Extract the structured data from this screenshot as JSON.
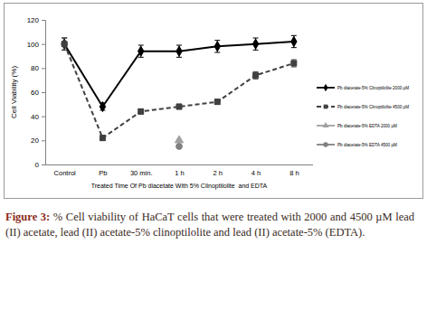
{
  "chart_data": {
    "type": "line",
    "x_label": "Treated Time Of Pb diacetate With 5% Clinoptilolite  and EDTA",
    "y_label": "Cell Viability (%)",
    "caption_label": "Figure 3:",
    "caption": "% Cell viability of HaCaT cells that were treated with 2000 and 4500 µM lead (II) acetate, lead (II) acetate-5% clinoptilolite and lead (II) acetate-5% (EDTA).",
    "categories": [
      "Control",
      "Pb",
      "30 min.",
      "1 h",
      "2 h",
      "4 h",
      "8 h"
    ],
    "ylim": [
      0,
      120
    ],
    "yticks": [
      0,
      20,
      40,
      60,
      80,
      100,
      120
    ],
    "grid": false,
    "legend": "right",
    "series": [
      {
        "name": "Pb diacetate-5% Clinoptilolite 2000 µM",
        "color": "#000000",
        "marker": "diamond",
        "line_style": "solid",
        "values": [
          100,
          48,
          94,
          94,
          98,
          100,
          102
        ],
        "errors": [
          5,
          3,
          5,
          5,
          5,
          5,
          5
        ]
      },
      {
        "name": "Pb diacetate-5% Clinoptilolite 4500 µM",
        "color": "#404040",
        "marker": "square",
        "line_style": "dashed",
        "values": [
          100,
          22,
          44,
          48,
          52,
          74,
          84
        ],
        "errors": [
          5,
          2,
          2,
          2,
          2,
          3,
          3
        ]
      },
      {
        "name": "Pb diacetate-5% EDTA 2000 µM",
        "color": "#a0a0a0",
        "marker": "triangle",
        "line_style": "solid",
        "values": [
          null,
          null,
          null,
          20,
          null,
          null,
          null
        ],
        "errors": [
          null,
          null,
          null,
          1,
          null,
          null,
          null
        ]
      },
      {
        "name": "Pb diacetate-5% EDTA 4500 µM",
        "color": "#808080",
        "marker": "circle",
        "line_style": "solid",
        "values": [
          null,
          null,
          null,
          15,
          null,
          null,
          null
        ],
        "errors": [
          null,
          null,
          null,
          1,
          null,
          null,
          null
        ]
      }
    ]
  }
}
